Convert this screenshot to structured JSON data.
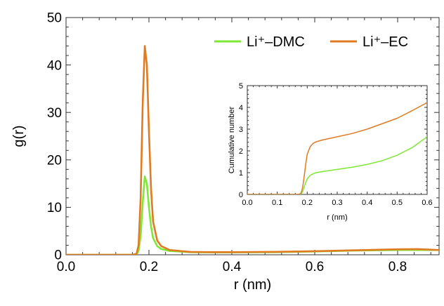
{
  "chart_data": [
    {
      "panel": "main",
      "type": "line",
      "xlabel": "r (nm)",
      "ylabel": "g(r)",
      "xlim": [
        0.0,
        0.9
      ],
      "ylim": [
        0,
        50
      ],
      "xticks": [
        0.0,
        0.2,
        0.4,
        0.6,
        0.8
      ],
      "xtick_labels": [
        "0.0",
        "0.2",
        "0.4",
        "0.6",
        "0.8"
      ],
      "yticks": [
        0,
        10,
        20,
        30,
        40,
        50
      ],
      "ytick_labels": [
        "0",
        "10",
        "20",
        "30",
        "40",
        "50"
      ],
      "grid": false,
      "legend_position": "top-right",
      "series": [
        {
          "name": "Li⁺–DMC",
          "color": "#7fe836",
          "x": [
            0.0,
            0.16,
            0.17,
            0.175,
            0.18,
            0.185,
            0.19,
            0.195,
            0.2,
            0.205,
            0.21,
            0.22,
            0.23,
            0.25,
            0.3,
            0.35,
            0.4,
            0.5,
            0.6,
            0.7,
            0.8,
            0.85,
            0.9
          ],
          "y": [
            0,
            0,
            0.1,
            0.8,
            4.0,
            11.0,
            16.5,
            15.0,
            10.0,
            6.0,
            3.5,
            1.8,
            1.2,
            0.8,
            0.55,
            0.5,
            0.5,
            0.55,
            0.7,
            0.9,
            1.0,
            1.0,
            1.0
          ]
        },
        {
          "name": "Li⁺–EC",
          "color": "#e07b22",
          "x": [
            0.0,
            0.16,
            0.17,
            0.175,
            0.18,
            0.185,
            0.19,
            0.195,
            0.2,
            0.205,
            0.21,
            0.22,
            0.23,
            0.25,
            0.3,
            0.35,
            0.4,
            0.5,
            0.6,
            0.7,
            0.8,
            0.85,
            0.9
          ],
          "y": [
            0,
            0,
            0.2,
            2.0,
            12.0,
            32.0,
            44.0,
            40.0,
            26.0,
            14.0,
            7.0,
            3.0,
            1.8,
            1.0,
            0.6,
            0.55,
            0.55,
            0.6,
            0.75,
            0.95,
            1.15,
            1.2,
            1.0
          ]
        }
      ]
    },
    {
      "panel": "inset",
      "type": "line",
      "xlabel": "r (nm)",
      "ylabel": "Cumulative number",
      "xlim": [
        0.0,
        0.6
      ],
      "ylim": [
        0,
        5
      ],
      "xticks": [
        0.0,
        0.1,
        0.2,
        0.3,
        0.4,
        0.5,
        0.6
      ],
      "xtick_labels": [
        "0.0",
        "0.1",
        "0.2",
        "0.3",
        "0.4",
        "0.5",
        "0.6"
      ],
      "yticks": [
        0,
        1,
        2,
        3,
        4,
        5
      ],
      "ytick_labels": [
        "0",
        "1",
        "2",
        "3",
        "4",
        "5"
      ],
      "grid": false,
      "series": [
        {
          "color": "#7fe836",
          "x": [
            0.0,
            0.17,
            0.175,
            0.18,
            0.185,
            0.19,
            0.195,
            0.2,
            0.21,
            0.22,
            0.23,
            0.25,
            0.3,
            0.35,
            0.4,
            0.45,
            0.5,
            0.55,
            0.6
          ],
          "y": [
            0,
            0,
            0.0,
            0.03,
            0.15,
            0.35,
            0.55,
            0.72,
            0.88,
            0.95,
            1.0,
            1.05,
            1.15,
            1.25,
            1.38,
            1.55,
            1.8,
            2.15,
            2.65
          ]
        },
        {
          "color": "#e07b22",
          "x": [
            0.0,
            0.17,
            0.175,
            0.18,
            0.185,
            0.19,
            0.195,
            0.2,
            0.21,
            0.22,
            0.23,
            0.25,
            0.3,
            0.35,
            0.4,
            0.45,
            0.5,
            0.55,
            0.6
          ],
          "y": [
            0,
            0,
            0.02,
            0.08,
            0.35,
            0.85,
            1.4,
            1.85,
            2.2,
            2.35,
            2.42,
            2.5,
            2.65,
            2.8,
            3.0,
            3.25,
            3.5,
            3.85,
            4.22
          ]
        }
      ]
    }
  ]
}
